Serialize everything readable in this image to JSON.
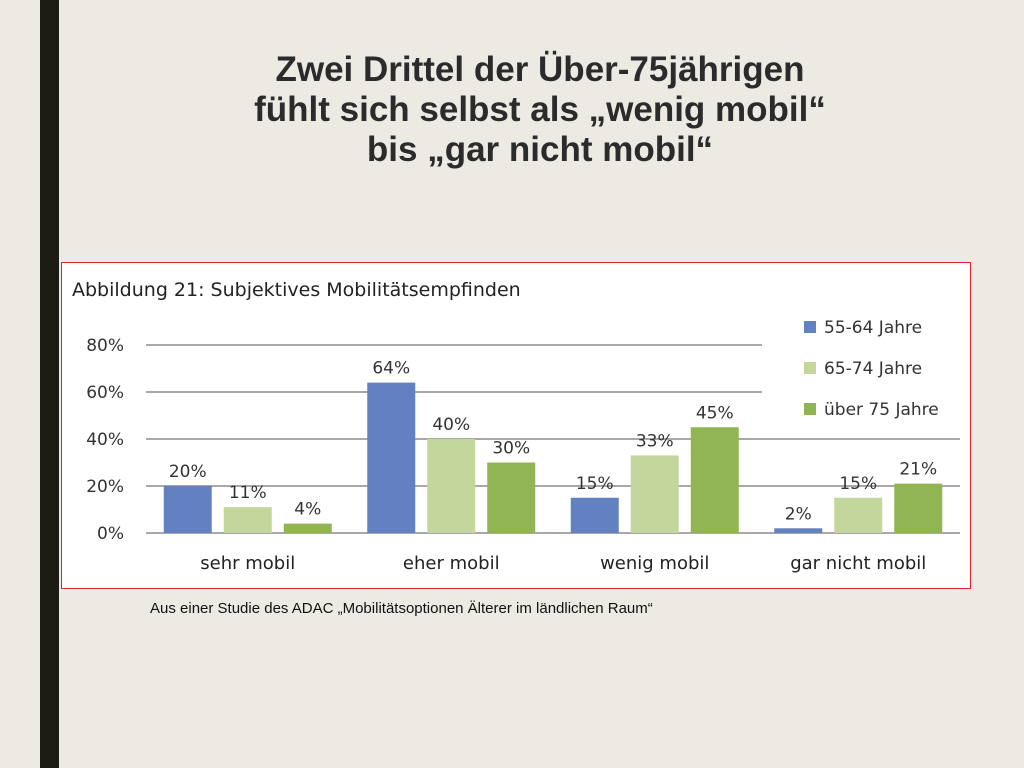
{
  "slide": {
    "title_lines": [
      "Zwei Drittel der Über-75jährigen",
      "fühlt sich selbst als „wenig mobil“",
      "bis „gar nicht mobil“"
    ],
    "source_caption": "Aus einer Studie des ADAC „Mobilitätsoptionen Älterer im ländlichen Raum“"
  },
  "colors": {
    "series_1": "#6381c0",
    "series_2": "#c3d79c",
    "series_3": "#92b554",
    "frame_border": "#e0232b",
    "left_bar": "#1c1c14"
  },
  "chart_data": {
    "type": "bar",
    "title": "Abbildung 21: Subjektives Mobilitätsempfinden",
    "categories": [
      "sehr mobil",
      "eher mobil",
      "wenig mobil",
      "gar nicht mobil"
    ],
    "series": [
      {
        "name": "55-64 Jahre",
        "values": [
          20,
          64,
          15,
          2
        ]
      },
      {
        "name": "65-74 Jahre",
        "values": [
          11,
          40,
          33,
          15
        ]
      },
      {
        "name": "über 75 Jahre",
        "values": [
          4,
          30,
          45,
          21
        ]
      }
    ],
    "value_suffix": "%",
    "ylim": [
      0,
      80
    ],
    "yticks": [
      0,
      20,
      40,
      60,
      80
    ],
    "ytick_labels": [
      "0%",
      "20%",
      "40%",
      "60%",
      "80%"
    ],
    "grid": true,
    "legend_position": "top-right"
  }
}
